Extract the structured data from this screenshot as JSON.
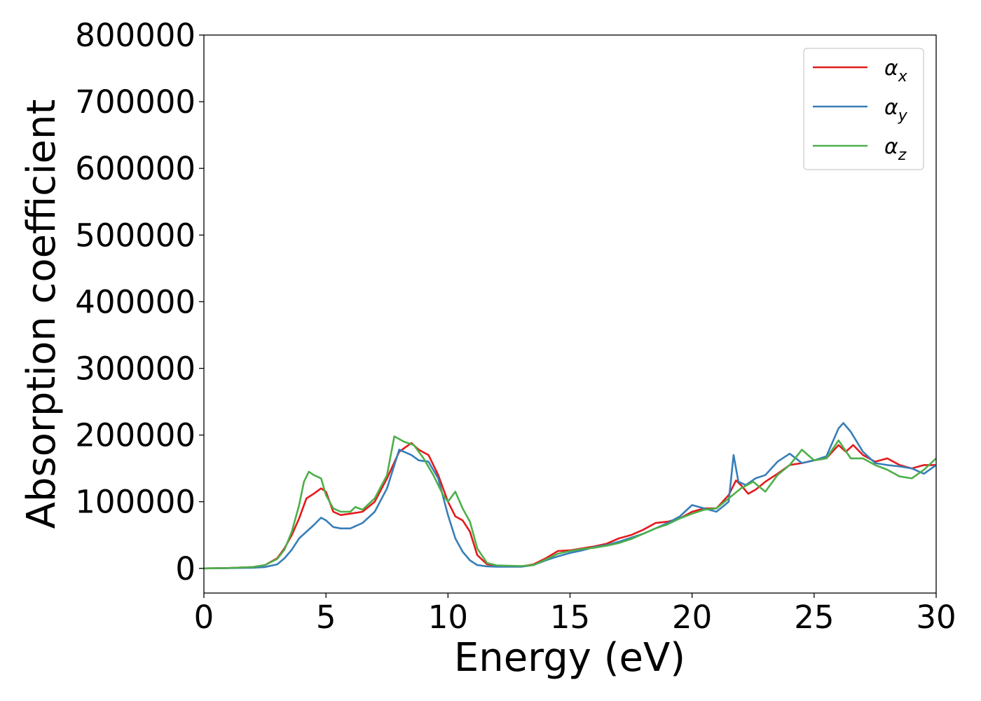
{
  "chart_data": {
    "type": "line",
    "xlabel": "Energy (eV)",
    "ylabel": "Absorption coefficient",
    "xlim": [
      0,
      30
    ],
    "ylim": [
      -37000,
      800000
    ],
    "xticks": [
      0,
      5,
      10,
      15,
      20,
      25,
      30
    ],
    "xtick_labels": [
      "0",
      "5",
      "10",
      "15",
      "20",
      "25",
      "30"
    ],
    "yticks": [
      0,
      100000,
      200000,
      300000,
      400000,
      500000,
      600000,
      700000,
      800000
    ],
    "ytick_labels": [
      "0",
      "100000",
      "200000",
      "300000",
      "400000",
      "500000",
      "600000",
      "700000",
      "800000"
    ],
    "grid": false,
    "legend_position": "top-right",
    "series": [
      {
        "name": "α",
        "subscript": "x",
        "color": "#e41a1c",
        "x": [
          0,
          1,
          2,
          2.5,
          3,
          3.3,
          3.6,
          3.9,
          4.2,
          4.5,
          4.8,
          5.0,
          5.3,
          5.6,
          6.0,
          6.5,
          7.0,
          7.5,
          8.0,
          8.5,
          8.8,
          9.2,
          9.6,
          10.0,
          10.3,
          10.6,
          10.9,
          11.2,
          11.6,
          12.0,
          13.0,
          13.5,
          14.0,
          14.5,
          15.0,
          15.5,
          16.0,
          16.5,
          17.0,
          17.5,
          18.0,
          18.5,
          19.0,
          19.5,
          20.0,
          20.5,
          21.0,
          21.5,
          21.8,
          22.0,
          22.3,
          22.6,
          23.0,
          23.5,
          24.0,
          24.5,
          25.0,
          25.5,
          26.0,
          26.3,
          26.6,
          27.0,
          27.5,
          28.0,
          28.5,
          29.0,
          29.5,
          30.0
        ],
        "y": [
          0,
          500,
          2000,
          5000,
          15000,
          30000,
          50000,
          75000,
          105000,
          112000,
          120000,
          115000,
          85000,
          80000,
          82000,
          85000,
          100000,
          135000,
          175000,
          188000,
          178000,
          170000,
          140000,
          100000,
          78000,
          72000,
          55000,
          20000,
          6000,
          4000,
          3000,
          6000,
          15000,
          26000,
          27000,
          30000,
          33000,
          37000,
          45000,
          50000,
          58000,
          68000,
          70000,
          75000,
          85000,
          90000,
          90000,
          110000,
          132000,
          125000,
          112000,
          118000,
          130000,
          142000,
          155000,
          158000,
          162000,
          165000,
          185000,
          175000,
          185000,
          170000,
          160000,
          165000,
          155000,
          150000,
          155000,
          155000
        ]
      },
      {
        "name": "α",
        "subscript": "y",
        "color": "#377eb8",
        "x": [
          0,
          1,
          2,
          2.5,
          3,
          3.3,
          3.6,
          3.9,
          4.2,
          4.5,
          4.8,
          5.0,
          5.3,
          5.6,
          6.0,
          6.5,
          7.0,
          7.5,
          8.0,
          8.5,
          8.8,
          9.2,
          9.6,
          10.0,
          10.3,
          10.6,
          10.9,
          11.2,
          11.6,
          12.0,
          13.0,
          13.5,
          14.0,
          14.5,
          15.0,
          15.5,
          16.0,
          16.5,
          17.0,
          17.5,
          18.0,
          18.5,
          19.0,
          19.5,
          20.0,
          20.5,
          21.0,
          21.5,
          21.7,
          21.9,
          22.2,
          22.6,
          23.0,
          23.5,
          24.0,
          24.5,
          25.0,
          25.5,
          26.0,
          26.2,
          26.5,
          27.0,
          27.5,
          28.0,
          28.5,
          29.0,
          29.5,
          30.0
        ],
        "y": [
          0,
          300,
          1000,
          2000,
          6000,
          15000,
          28000,
          45000,
          55000,
          65000,
          76000,
          72000,
          62000,
          60000,
          60000,
          68000,
          85000,
          120000,
          178000,
          170000,
          162000,
          160000,
          135000,
          80000,
          45000,
          25000,
          12000,
          5000,
          3000,
          2500,
          2500,
          5000,
          12000,
          18000,
          23000,
          27000,
          32000,
          35000,
          40000,
          46000,
          52000,
          60000,
          68000,
          78000,
          95000,
          90000,
          85000,
          100000,
          170000,
          130000,
          125000,
          135000,
          140000,
          160000,
          172000,
          158000,
          162000,
          168000,
          210000,
          218000,
          205000,
          175000,
          158000,
          155000,
          153000,
          150000,
          142000,
          155000
        ]
      },
      {
        "name": "α",
        "subscript": "z",
        "color": "#4daf4a",
        "x": [
          0,
          1,
          2,
          2.5,
          3,
          3.3,
          3.6,
          3.9,
          4.1,
          4.3,
          4.5,
          4.8,
          5.0,
          5.3,
          5.6,
          6.0,
          6.2,
          6.5,
          7.0,
          7.5,
          7.8,
          8.2,
          8.6,
          9.0,
          9.4,
          9.8,
          10.0,
          10.3,
          10.6,
          10.9,
          11.2,
          11.6,
          12.0,
          13.0,
          13.5,
          14.0,
          14.5,
          15.0,
          15.5,
          16.0,
          16.5,
          17.0,
          17.5,
          18.0,
          18.5,
          19.0,
          19.5,
          20.0,
          20.5,
          21.0,
          21.5,
          22.0,
          22.5,
          23.0,
          23.5,
          24.0,
          24.5,
          25.0,
          25.5,
          26.0,
          26.5,
          27.0,
          27.5,
          28.0,
          28.5,
          29.0,
          29.5,
          30.0
        ],
        "y": [
          0,
          500,
          2000,
          5000,
          14000,
          28000,
          55000,
          95000,
          130000,
          145000,
          140000,
          135000,
          110000,
          90000,
          85000,
          85000,
          92000,
          88000,
          105000,
          140000,
          198000,
          190000,
          185000,
          165000,
          140000,
          110000,
          100000,
          115000,
          90000,
          70000,
          30000,
          8000,
          4500,
          3500,
          5000,
          13000,
          22000,
          26000,
          29000,
          31000,
          34000,
          38000,
          44000,
          52000,
          60000,
          66000,
          75000,
          82000,
          88000,
          90000,
          105000,
          120000,
          130000,
          115000,
          140000,
          155000,
          178000,
          162000,
          165000,
          192000,
          165000,
          165000,
          155000,
          148000,
          138000,
          135000,
          148000,
          165000
        ]
      }
    ]
  }
}
